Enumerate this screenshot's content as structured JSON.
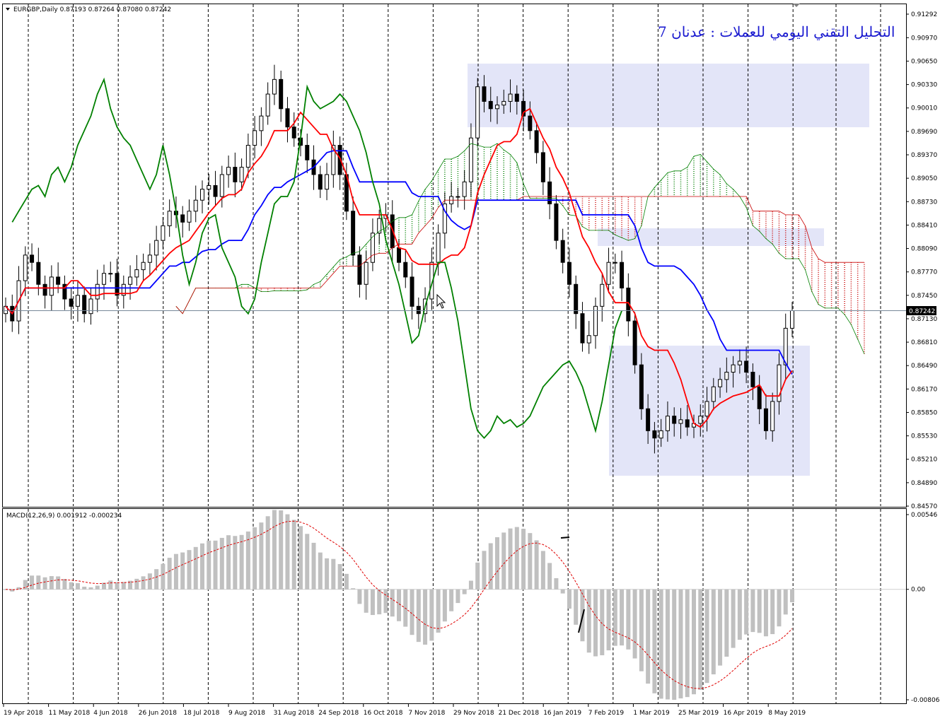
{
  "header": {
    "symbol_line": "EURGBP,Daily  0.87193 0.87264 0.87080 0.87242",
    "arabic_title": "التحليل التقني اليومي للعملات : عدنان 7"
  },
  "price_axis": {
    "ticks": [
      "0.91292",
      "0.90970",
      "0.90650",
      "0.90330",
      "0.90010",
      "0.89690",
      "0.89370",
      "0.89050",
      "0.88730",
      "0.88410",
      "0.88090",
      "0.87770",
      "0.87450",
      "0.87130",
      "0.86810",
      "0.86490",
      "0.86170",
      "0.85850",
      "0.85530",
      "0.85210",
      "0.84890",
      "0.84570"
    ],
    "current_price": "0.87242"
  },
  "macd": {
    "label": "MACD(12,26,9) 0.001912 -0.000234",
    "ticks": [
      "0.00546",
      "0.00",
      "-0.008069"
    ]
  },
  "time_axis": {
    "labels": [
      "19 Apr 2018",
      "11 May 2018",
      "4 Jun 2018",
      "26 Jun 2018",
      "18 Jul 2018",
      "9 Aug 2018",
      "31 Aug 2018",
      "24 Sep 2018",
      "16 Oct 2018",
      "7 Nov 2018",
      "29 Nov 2018",
      "21 Dec 2018",
      "16 Jan 2019",
      "7 Feb 2019",
      "1 Mar 2019",
      "25 Mar 2019",
      "16 Apr 2019",
      "8 May 2019"
    ]
  },
  "colors": {
    "tenkan": "#ff0000",
    "kijun": "#0000ff",
    "chikou": "#008000",
    "kumo_bull": "#008000",
    "kumo_bear": "#c80000",
    "zones": "#e3e5f8",
    "macd_hist": "#c0c0c0",
    "macd_signal": "#e00000",
    "candle": "#000000"
  },
  "chart_data": {
    "type": "candlestick",
    "symbol": "EURGBP",
    "timeframe": "Daily",
    "last_ohlc": {
      "open": 0.87193,
      "high": 0.87264,
      "low": 0.8708,
      "close": 0.87242
    },
    "ylim": [
      0.8457,
      0.91292
    ],
    "macd_ylim": [
      -0.008069,
      0.00546
    ],
    "closes": [
      0.873,
      0.871,
      0.8765,
      0.88,
      0.879,
      0.876,
      0.8745,
      0.877,
      0.876,
      0.874,
      0.873,
      0.8745,
      0.872,
      0.874,
      0.876,
      0.8775,
      0.8775,
      0.8745,
      0.876,
      0.877,
      0.878,
      0.879,
      0.88,
      0.882,
      0.884,
      0.886,
      0.8855,
      0.8845,
      0.886,
      0.8875,
      0.889,
      0.8895,
      0.888,
      0.891,
      0.892,
      0.89,
      0.892,
      0.895,
      0.897,
      0.899,
      0.902,
      0.904,
      0.9,
      0.8975,
      0.896,
      0.895,
      0.893,
      0.891,
      0.889,
      0.891,
      0.895,
      0.891,
      0.886,
      0.88,
      0.876,
      0.879,
      0.883,
      0.885,
      0.8855,
      0.881,
      0.879,
      0.877,
      0.873,
      0.872,
      0.874,
      0.879,
      0.883,
      0.887,
      0.888,
      0.888,
      0.89,
      0.896,
      0.903,
      0.901,
      0.9,
      0.9005,
      0.901,
      0.902,
      0.901,
      0.899,
      0.897,
      0.894,
      0.89,
      0.887,
      0.882,
      0.879,
      0.876,
      0.872,
      0.868,
      0.869,
      0.873,
      0.876,
      0.879,
      0.879,
      0.8755,
      0.871,
      0.865,
      0.859,
      0.856,
      0.855,
      0.856,
      0.858,
      0.857,
      0.8575,
      0.8565,
      0.857,
      0.858,
      0.86,
      0.862,
      0.863,
      0.864,
      0.865,
      0.8655,
      0.864,
      0.862,
      0.859,
      0.856,
      0.86,
      0.865,
      0.87,
      0.8724
    ],
    "indicators": [
      "Ichimoku Kinko Hyo (Tenkan-sen, Kijun-sen, Chikou Span, Kumo)",
      "MACD(12,26,9)"
    ]
  }
}
